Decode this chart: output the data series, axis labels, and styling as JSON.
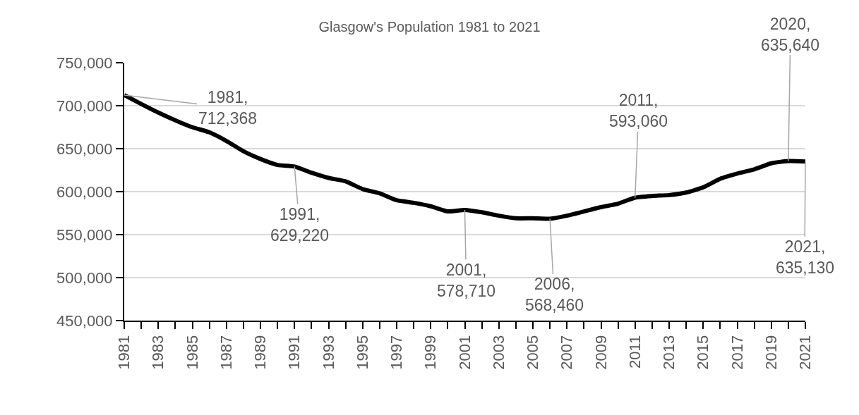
{
  "chart_data": {
    "type": "line",
    "title": "Glasgow's Population 1981 to 2021",
    "x": [
      1981,
      1982,
      1983,
      1984,
      1985,
      1986,
      1987,
      1988,
      1989,
      1990,
      1991,
      1992,
      1993,
      1994,
      1995,
      1996,
      1997,
      1998,
      1999,
      2000,
      2001,
      2002,
      2003,
      2004,
      2005,
      2006,
      2007,
      2008,
      2009,
      2010,
      2011,
      2012,
      2013,
      2014,
      2015,
      2016,
      2017,
      2018,
      2019,
      2020,
      2021
    ],
    "series": [
      {
        "color": "#000000",
        "values": [
          712368,
          702000,
          692000,
          683000,
          675000,
          669000,
          659000,
          647000,
          638000,
          631000,
          629220,
          622000,
          616000,
          612000,
          603000,
          598000,
          590000,
          587000,
          583000,
          577000,
          578710,
          576000,
          572000,
          569000,
          569000,
          568460,
          572000,
          577000,
          582000,
          586000,
          593060,
          595000,
          596000,
          599000,
          605000,
          615000,
          621000,
          626000,
          633000,
          635640,
          635130
        ]
      }
    ],
    "xlim": [
      1981,
      2021
    ],
    "xticks": [
      1981,
      1983,
      1985,
      1987,
      1989,
      1991,
      1993,
      1995,
      1997,
      1999,
      2001,
      2003,
      2005,
      2007,
      2009,
      2011,
      2013,
      2015,
      2017,
      2019,
      2021
    ],
    "ylim": [
      450000,
      750000
    ],
    "yticks": [
      {
        "value": 450000,
        "label": "450,000"
      },
      {
        "value": 500000,
        "label": "500,000"
      },
      {
        "value": 550000,
        "label": "550,000"
      },
      {
        "value": 600000,
        "label": "600,000"
      },
      {
        "value": 650000,
        "label": "650,000"
      },
      {
        "value": 700000,
        "label": "700,000"
      },
      {
        "value": 750000,
        "label": "750,000"
      }
    ],
    "grid": "y",
    "marker": "none",
    "line_style": "solid",
    "annotations": [
      {
        "text": "1981,\n712,368",
        "x": 1981,
        "y": 712368
      },
      {
        "text": "1991,\n629,220",
        "x": 1991,
        "y": 629220
      },
      {
        "text": "2001,\n578,710",
        "x": 2001,
        "y": 578710
      },
      {
        "text": "2006,\n568,460",
        "x": 2006,
        "y": 568460
      },
      {
        "text": "2011,\n593,060",
        "x": 2011,
        "y": 593060
      },
      {
        "text": "2020,\n635,640",
        "x": 2020,
        "y": 635640
      },
      {
        "text": "2021,\n635,130",
        "x": 2021,
        "y": 635130
      }
    ]
  }
}
